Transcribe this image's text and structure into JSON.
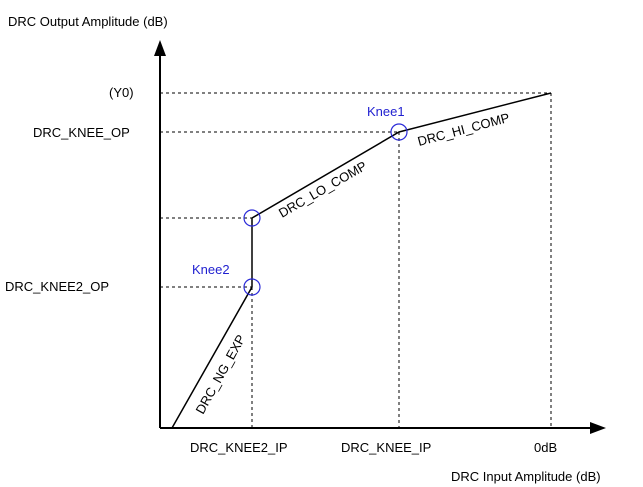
{
  "axes": {
    "y_title": "DRC Output Amplitude (dB)",
    "x_title": "DRC Input Amplitude (dB)"
  },
  "y_labels": {
    "y0": "(Y0)",
    "knee_op": "DRC_KNEE_OP",
    "knee2_op": "DRC_KNEE2_OP"
  },
  "x_labels": {
    "knee2_ip": "DRC_KNEE2_IP",
    "knee_ip": "DRC_KNEE_IP",
    "zero_db": "0dB"
  },
  "knees": {
    "knee1": "Knee1",
    "knee2": "Knee2"
  },
  "segments": {
    "ng_exp": "DRC_NG_EXP",
    "lo_comp": "DRC_LO_COMP",
    "hi_comp": "DRC_HI_COMP"
  }
}
